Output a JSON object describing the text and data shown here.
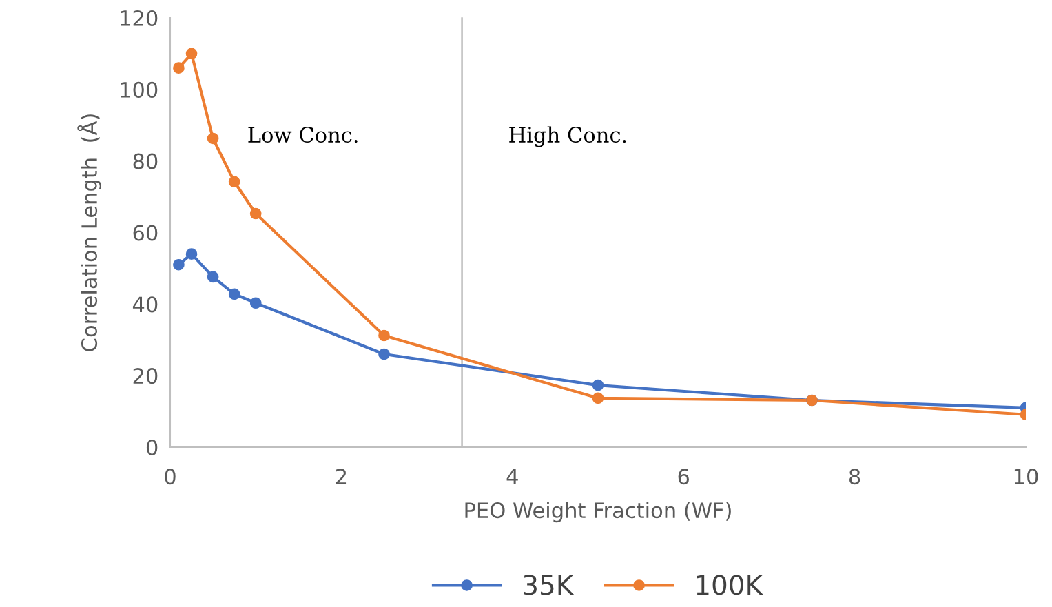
{
  "chart_data": {
    "type": "line",
    "xlabel": "PEO Weight Fraction (WF)",
    "ylabel": "Correlation Length  (Å)",
    "x": [
      0.1,
      0.25,
      0.5,
      0.75,
      1,
      2.5,
      5,
      7.5,
      10
    ],
    "series": [
      {
        "name": "35K",
        "color": "#4472c4",
        "values": [
          51,
          54,
          47.6,
          42.8,
          40.3,
          26,
          17.3,
          13.1,
          11
        ]
      },
      {
        "name": "100K",
        "color": "#ed7d31",
        "values": [
          106,
          110,
          86.3,
          74.2,
          65.3,
          31.2,
          13.7,
          13.1,
          9.1
        ]
      }
    ],
    "xlim": [
      0,
      10
    ],
    "xticks": [
      0,
      2,
      4,
      6,
      8,
      10
    ],
    "ylim": [
      0,
      120
    ],
    "yticks": [
      0,
      20,
      40,
      60,
      80,
      100,
      120
    ],
    "ref_lines": [
      {
        "axis": "x",
        "value": 3.41,
        "color": "#000000"
      }
    ],
    "annotations": [
      "Low Conc.",
      "High Conc."
    ],
    "grid": false,
    "legend": "bottom",
    "marker": "circle",
    "line_style": "solid"
  }
}
